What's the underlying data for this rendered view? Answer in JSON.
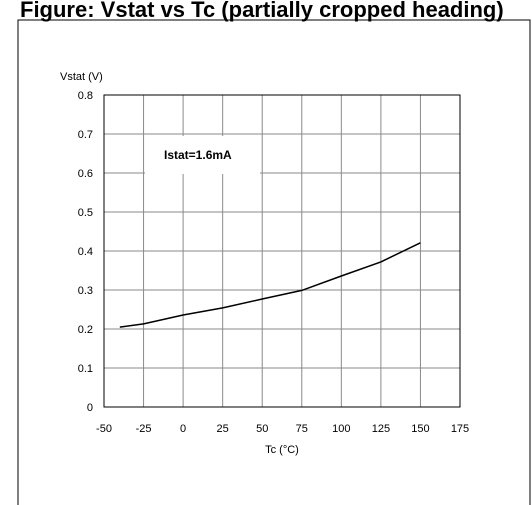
{
  "figure": {
    "title": "Figure: Vstat vs Tc (partially cropped heading)"
  },
  "chart_data": {
    "type": "line",
    "title": "",
    "xlabel": "Tc (°C)",
    "ylabel": "Vstat (V)",
    "xlim": [
      -50,
      175
    ],
    "ylim": [
      0,
      0.8
    ],
    "xticks": [
      -50,
      -25,
      0,
      25,
      50,
      75,
      100,
      125,
      150,
      175
    ],
    "yticks": [
      0,
      0.1,
      0.2,
      0.3,
      0.4,
      0.5,
      0.6,
      0.7,
      0.8
    ],
    "ytick_labels": [
      "0",
      "0.1",
      "0.2",
      "0.3",
      "0.4",
      "0.5",
      "0.6",
      "0.7",
      "0.8"
    ],
    "grid": true,
    "annotation": "Istat=1.6mA",
    "series": [
      {
        "x": [
          -40,
          -25,
          0,
          25,
          50,
          75,
          100,
          125,
          150
        ],
        "y": [
          0.205,
          0.213,
          0.236,
          0.254,
          0.277,
          0.299,
          0.336,
          0.372,
          0.421
        ]
      }
    ]
  }
}
